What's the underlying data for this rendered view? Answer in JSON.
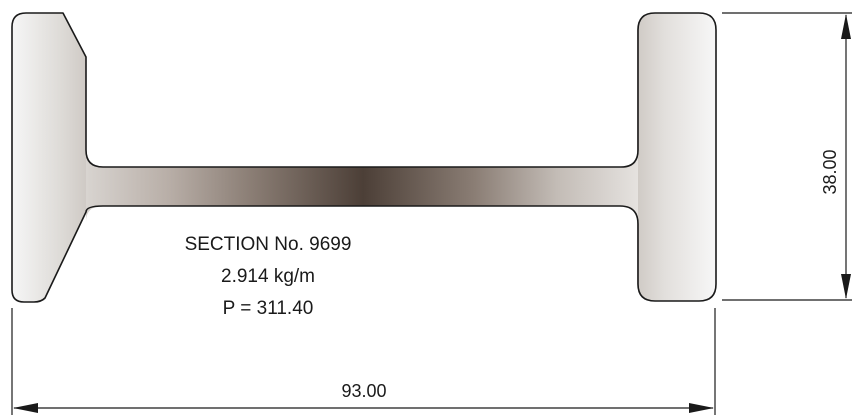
{
  "section": {
    "title": "SECTION No. 9699",
    "weight": "2.914 kg/m",
    "perimeter": "P = 311.40"
  },
  "dimensions": {
    "width": "93.00",
    "height": "38.00"
  },
  "colors": {
    "profile_outline": "#1a1a1a",
    "profile_light": "#ffffff",
    "profile_mid": "#d2cec9",
    "web_dark": "#4a3e37",
    "dimension_lines": "#1a1a1a"
  }
}
